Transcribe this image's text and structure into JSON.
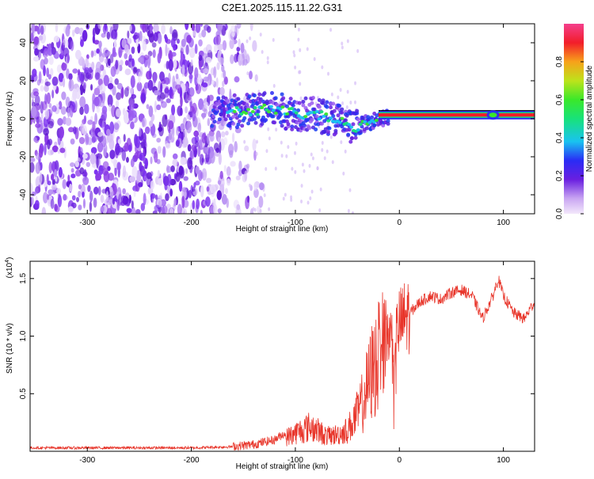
{
  "title": "C2E1.2025.115.11.22.G31",
  "chart_data": [
    {
      "type": "heatmap",
      "name": "spectrogram",
      "xlabel": "Height of straight line (km)",
      "ylabel": "Frequency (Hz)",
      "xlim": [
        -355,
        130
      ],
      "ylim": [
        -50,
        50
      ],
      "xticks": [
        -300,
        -200,
        -100,
        0,
        100
      ],
      "xtick_labels": [
        "-300",
        "-200",
        "-100",
        "0",
        "100"
      ],
      "yticks": [
        -40,
        -20,
        0,
        20,
        40
      ],
      "ytick_labels": [
        "-40",
        "-20",
        "0",
        "20",
        "40"
      ],
      "ridge": [
        {
          "x": -175,
          "y": 3
        },
        {
          "x": -150,
          "y": 4
        },
        {
          "x": -125,
          "y": 5
        },
        {
          "x": -100,
          "y": 3
        },
        {
          "x": -80,
          "y": 2
        },
        {
          "x": -60,
          "y": 0
        },
        {
          "x": -45,
          "y": -5
        },
        {
          "x": -35,
          "y": -3
        },
        {
          "x": -20,
          "y": 0
        },
        {
          "x": 0,
          "y": 1
        },
        {
          "x": 50,
          "y": 1.5
        },
        {
          "x": 90,
          "y": 2
        },
        {
          "x": 130,
          "y": 2
        }
      ],
      "colorbar": {
        "label": "Normalized spectral amplitude",
        "ticks": [
          0.0,
          0.2,
          0.4,
          0.6,
          0.8
        ],
        "tick_labels": [
          "0.0",
          "0.2",
          "0.4",
          "0.6",
          "0.8"
        ],
        "range": [
          0,
          1
        ]
      }
    },
    {
      "type": "line",
      "name": "snr",
      "xlabel": "Height of straight line (km)",
      "ylabel": "SNR (10 * v/v)",
      "y_multiplier": "(x10",
      "y_multiplier_exp": "4",
      "y_multiplier_close": ")",
      "xlim": [
        -355,
        130
      ],
      "ylim": [
        0,
        1.65
      ],
      "xticks": [
        -300,
        -200,
        -100,
        0,
        100
      ],
      "xtick_labels": [
        "-300",
        "-200",
        "-100",
        "0",
        "100"
      ],
      "yticks": [
        0.5,
        1.0,
        1.5
      ],
      "ytick_labels": [
        "0.5",
        "1.0",
        "1.5"
      ],
      "color": "#e8352a",
      "series": [
        {
          "name": "SNR",
          "x": [
            -355,
            -300,
            -250,
            -200,
            -160,
            -140,
            -120,
            -100,
            -85,
            -70,
            -60,
            -50,
            -40,
            -35,
            -30,
            -25,
            -20,
            -15,
            -10,
            -5,
            0,
            10,
            20,
            30,
            40,
            50,
            60,
            70,
            80,
            90,
            95,
            100,
            110,
            120,
            130
          ],
          "y": [
            0.03,
            0.03,
            0.03,
            0.03,
            0.04,
            0.06,
            0.1,
            0.22,
            0.3,
            0.18,
            0.2,
            0.25,
            0.45,
            0.6,
            0.8,
            1.0,
            1.1,
            1.05,
            1.0,
            0.95,
            1.1,
            1.2,
            1.3,
            1.35,
            1.32,
            1.38,
            1.4,
            1.35,
            1.15,
            1.35,
            1.5,
            1.35,
            1.2,
            1.15,
            1.3
          ]
        }
      ]
    }
  ]
}
